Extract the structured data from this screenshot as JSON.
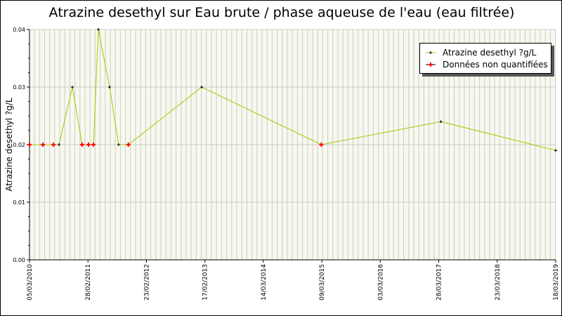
{
  "chart_data": {
    "type": "line",
    "title": "Atrazine desethyl sur Eau brute / phase aqueuse de l'eau (eau filtrée)",
    "xlabel": "",
    "ylabel": "Atrazine desethyl ?g/L",
    "ylim": [
      0,
      0.04
    ],
    "yticks": [
      "0.00",
      "0.01",
      "0.02",
      "0.03",
      "0.04"
    ],
    "xlim": [
      "2010-03-05",
      "2019-03-18"
    ],
    "xticks": [
      "05/03/2010",
      "28/02/2011",
      "23/02/2012",
      "17/02/2013",
      "14/03/2014",
      "09/03/2015",
      "03/03/2016",
      "28/03/2017",
      "23/03/2018",
      "18/03/2019"
    ],
    "grid": true,
    "legend_position": "top-right",
    "colors": {
      "line": "#99cc00",
      "quantified": "#000000",
      "non_quantified": "#ff0000",
      "plot_bg": "#f8f8ee",
      "grid": "#cccccc"
    },
    "series": [
      {
        "name": "Atrazine desethyl ?g/L",
        "points": [
          {
            "x": "2010-03-05",
            "y": 0.02,
            "quantified": false
          },
          {
            "x": "2010-05-28",
            "y": 0.02,
            "quantified": false
          },
          {
            "x": "2010-08-02",
            "y": 0.02,
            "quantified": false
          },
          {
            "x": "2010-09-06",
            "y": 0.02,
            "quantified": true
          },
          {
            "x": "2010-11-29",
            "y": 0.03,
            "quantified": true
          },
          {
            "x": "2011-01-29",
            "y": 0.02,
            "quantified": false
          },
          {
            "x": "2011-03-10",
            "y": 0.02,
            "quantified": false
          },
          {
            "x": "2011-04-10",
            "y": 0.02,
            "quantified": false
          },
          {
            "x": "2011-05-11",
            "y": 0.04,
            "quantified": true
          },
          {
            "x": "2011-07-20",
            "y": 0.03,
            "quantified": true
          },
          {
            "x": "2011-09-15",
            "y": 0.02,
            "quantified": true
          },
          {
            "x": "2011-11-15",
            "y": 0.02,
            "quantified": false
          },
          {
            "x": "2013-02-17",
            "y": 0.03,
            "quantified": true
          },
          {
            "x": "2015-03-09",
            "y": 0.02,
            "quantified": false
          },
          {
            "x": "2017-03-28",
            "y": 0.024,
            "quantified": true
          },
          {
            "x": "2019-03-18",
            "y": 0.019,
            "quantified": true
          }
        ]
      }
    ],
    "legend": [
      "Atrazine desethyl ?g/L",
      "Données non quantifiées"
    ]
  }
}
